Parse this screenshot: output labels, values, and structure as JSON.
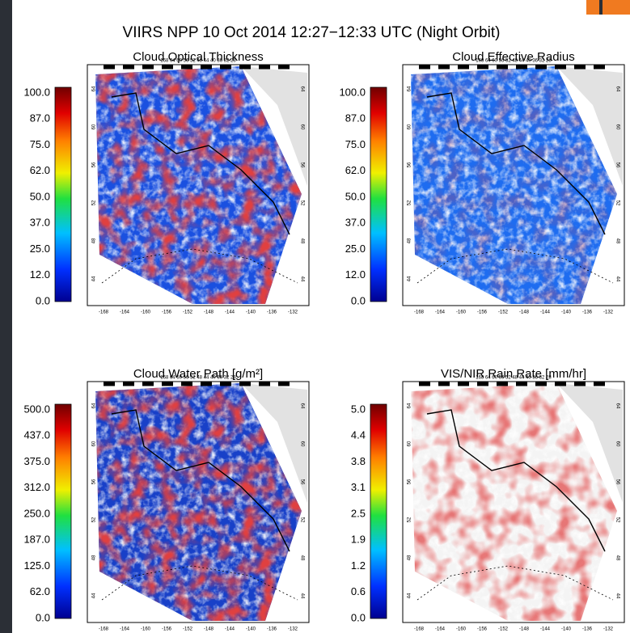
{
  "header": {
    "title": "VIIRS NPP 10 Oct 2014 12:27−12:33 UTC (Night Orbit)"
  },
  "panels": [
    {
      "title": "Cloud Optical Thickness",
      "colorbar_labels": [
        "100.0",
        "87.0",
        "75.0",
        "62.0",
        "50.0",
        "37.0",
        "25.0",
        "12.0",
        "0.0"
      ]
    },
    {
      "title": "Cloud Effective Radius",
      "colorbar_labels": [
        "100.0",
        "87.0",
        "75.0",
        "62.0",
        "50.0",
        "37.0",
        "25.0",
        "12.0",
        "0.0"
      ]
    },
    {
      "title": "Cloud Water Path [g/m²]",
      "colorbar_labels": [
        "500.0",
        "437.0",
        "375.0",
        "312.0",
        "250.0",
        "187.0",
        "125.0",
        "62.0",
        "0.0"
      ]
    },
    {
      "title": "VIS/NIR Rain Rate [mm/hr]",
      "colorbar_labels": [
        "5.0",
        "4.4",
        "3.8",
        "3.1",
        "2.5",
        "1.9",
        "1.2",
        "0.6",
        "0.0"
      ]
    }
  ],
  "map_labels": {
    "top": "168 64 60 56 52 48 44 40 36 32 28",
    "longitudes": [
      "-168",
      "-164",
      "-160",
      "-156",
      "-152",
      "-148",
      "-144",
      "-140",
      "-136",
      "-132"
    ],
    "latitudes": [
      "64",
      "60",
      "56",
      "52",
      "48",
      "44"
    ]
  }
}
